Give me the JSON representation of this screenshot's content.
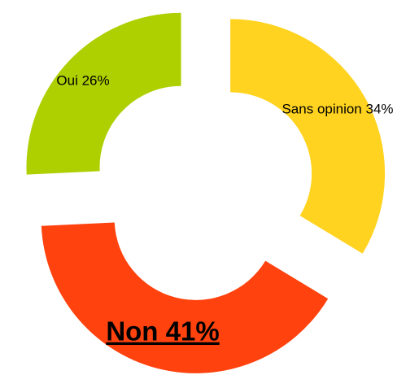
{
  "chart_data": {
    "type": "pie",
    "values": [
      34,
      41,
      26
    ],
    "value_labels": [
      "Sans opinion 34%",
      "Non 41%",
      "Oui 26%"
    ],
    "colors": [
      "#ffd320",
      "#ff420e",
      "#aecf00"
    ],
    "donut": true,
    "exploded": true
  }
}
